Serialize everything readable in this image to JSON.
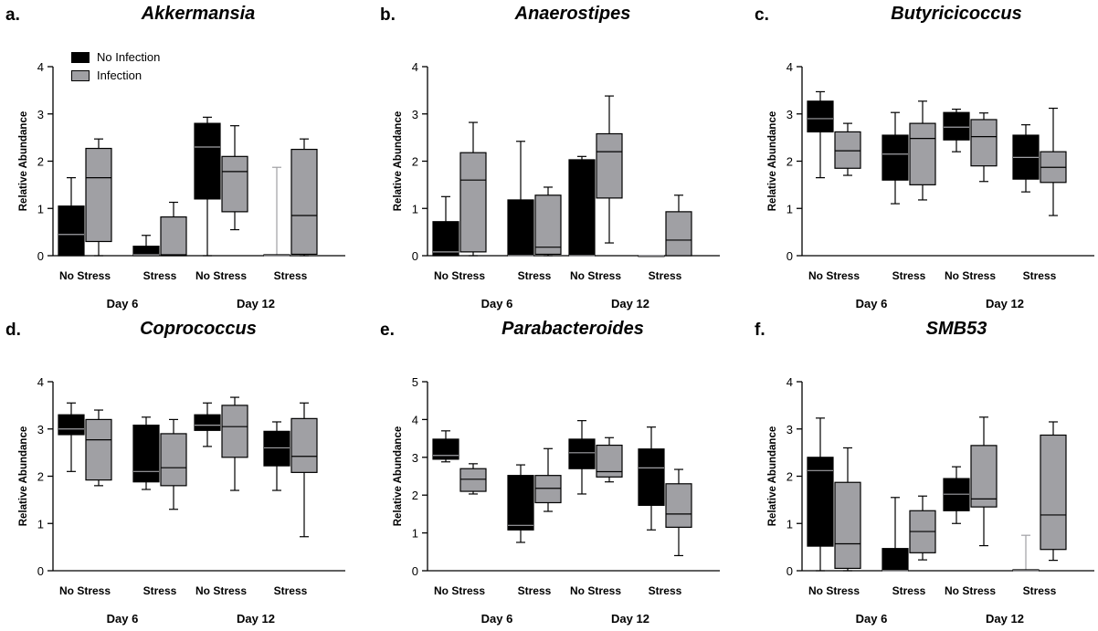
{
  "legend": {
    "items": [
      {
        "label": "No Infection",
        "color": "#000000"
      },
      {
        "label": "Infection",
        "color": "#a0a0a4"
      }
    ]
  },
  "chart_data": [
    {
      "type": "box",
      "panel_label": "a.",
      "title": "Akkermansia",
      "ylabel": "Relative Abundance",
      "ylim": [
        0,
        4
      ],
      "yticks": [
        0,
        1,
        2,
        3,
        4
      ],
      "x_labels": [
        "No Stress",
        "Stress",
        "No Stress",
        "Stress"
      ],
      "day_labels": [
        "Day 6",
        "Day 12"
      ],
      "series": [
        {
          "name": "No Infection",
          "color": "#000000",
          "boxes": [
            {
              "min": 0.0,
              "q1": 0.0,
              "median": 0.45,
              "q3": 1.05,
              "max": 1.65
            },
            {
              "min": 0.0,
              "q1": 0.0,
              "median": 0.02,
              "q3": 0.2,
              "max": 0.43
            },
            {
              "min": 0.0,
              "q1": 1.2,
              "median": 2.3,
              "q3": 2.8,
              "max": 2.93
            },
            {
              "min": 0.0,
              "q1": 0.0,
              "median": 0.0,
              "q3": 0.02,
              "max": 1.87
            }
          ]
        },
        {
          "name": "Infection",
          "color": "#a0a0a4",
          "boxes": [
            {
              "min": 0.0,
              "q1": 0.3,
              "median": 1.65,
              "q3": 2.27,
              "max": 2.47
            },
            {
              "min": 0.0,
              "q1": 0.0,
              "median": 0.02,
              "q3": 0.82,
              "max": 1.13
            },
            {
              "min": 0.55,
              "q1": 0.93,
              "median": 1.78,
              "q3": 2.1,
              "max": 2.75
            },
            {
              "min": 0.0,
              "q1": 0.03,
              "median": 0.85,
              "q3": 2.25,
              "max": 2.47
            }
          ]
        }
      ]
    },
    {
      "type": "box",
      "panel_label": "b.",
      "title": "Anaerostipes",
      "ylabel": "Relative Abundance",
      "ylim": [
        0,
        4
      ],
      "yticks": [
        0,
        1,
        2,
        3,
        4
      ],
      "x_labels": [
        "No Stress",
        "Stress",
        "No Stress",
        "Stress"
      ],
      "day_labels": [
        "Day 6",
        "Day 12"
      ],
      "series": [
        {
          "name": "No Infection",
          "color": "#000000",
          "boxes": [
            {
              "min": 0.0,
              "q1": 0.0,
              "median": 0.08,
              "q3": 0.72,
              "max": 1.25
            },
            {
              "min": 0.0,
              "q1": 0.0,
              "median": 0.0,
              "q3": 1.18,
              "max": 2.42
            },
            {
              "min": 0.0,
              "q1": 0.0,
              "median": 0.0,
              "q3": 2.03,
              "max": 2.1
            },
            {
              "min": 0.0,
              "q1": 0.0,
              "median": 0.0,
              "q3": 0.0,
              "max": 0.0
            }
          ]
        },
        {
          "name": "Infection",
          "color": "#a0a0a4",
          "boxes": [
            {
              "min": 0.0,
              "q1": 0.08,
              "median": 1.6,
              "q3": 2.18,
              "max": 2.82
            },
            {
              "min": 0.0,
              "q1": 0.03,
              "median": 0.18,
              "q3": 1.28,
              "max": 1.45
            },
            {
              "min": 0.27,
              "q1": 1.22,
              "median": 2.2,
              "q3": 2.58,
              "max": 3.38
            },
            {
              "min": 0.0,
              "q1": 0.0,
              "median": 0.33,
              "q3": 0.93,
              "max": 1.28
            }
          ]
        }
      ]
    },
    {
      "type": "box",
      "panel_label": "c.",
      "title": "Butyricicoccus",
      "ylabel": "Relative Abundance",
      "ylim": [
        0,
        4
      ],
      "yticks": [
        0,
        1,
        2,
        3,
        4
      ],
      "x_labels": [
        "No Stress",
        "Stress",
        "No Stress",
        "Stress"
      ],
      "day_labels": [
        "Day 6",
        "Day 12"
      ],
      "series": [
        {
          "name": "No Infection",
          "color": "#000000",
          "boxes": [
            {
              "min": 1.65,
              "q1": 2.62,
              "median": 2.9,
              "q3": 3.27,
              "max": 3.47
            },
            {
              "min": 1.1,
              "q1": 1.6,
              "median": 2.15,
              "q3": 2.55,
              "max": 3.03
            },
            {
              "min": 2.2,
              "q1": 2.45,
              "median": 2.72,
              "q3": 3.03,
              "max": 3.1
            },
            {
              "min": 1.35,
              "q1": 1.62,
              "median": 2.08,
              "q3": 2.55,
              "max": 2.77
            }
          ]
        },
        {
          "name": "Infection",
          "color": "#a0a0a4",
          "boxes": [
            {
              "min": 1.7,
              "q1": 1.85,
              "median": 2.22,
              "q3": 2.62,
              "max": 2.8
            },
            {
              "min": 1.18,
              "q1": 1.5,
              "median": 2.48,
              "q3": 2.8,
              "max": 3.27
            },
            {
              "min": 1.57,
              "q1": 1.9,
              "median": 2.52,
              "q3": 2.88,
              "max": 3.02
            },
            {
              "min": 0.85,
              "q1": 1.55,
              "median": 1.87,
              "q3": 2.2,
              "max": 3.12
            }
          ]
        }
      ]
    },
    {
      "type": "box",
      "panel_label": "d.",
      "title": "Coprococcus",
      "ylabel": "Relative Abundance",
      "ylim": [
        0,
        4
      ],
      "yticks": [
        0,
        1,
        2,
        3,
        4
      ],
      "x_labels": [
        "No Stress",
        "Stress",
        "No Stress",
        "Stress"
      ],
      "day_labels": [
        "Day 6",
        "Day 12"
      ],
      "series": [
        {
          "name": "No Infection",
          "color": "#000000",
          "boxes": [
            {
              "min": 2.1,
              "q1": 2.88,
              "median": 3.0,
              "q3": 3.3,
              "max": 3.55
            },
            {
              "min": 1.72,
              "q1": 1.88,
              "median": 2.1,
              "q3": 3.08,
              "max": 3.25
            },
            {
              "min": 2.63,
              "q1": 2.97,
              "median": 3.08,
              "q3": 3.3,
              "max": 3.55
            },
            {
              "min": 1.7,
              "q1": 2.22,
              "median": 2.6,
              "q3": 2.95,
              "max": 3.15
            }
          ]
        },
        {
          "name": "Infection",
          "color": "#a0a0a4",
          "boxes": [
            {
              "min": 1.8,
              "q1": 1.92,
              "median": 2.77,
              "q3": 3.2,
              "max": 3.4
            },
            {
              "min": 1.3,
              "q1": 1.8,
              "median": 2.18,
              "q3": 2.9,
              "max": 3.2
            },
            {
              "min": 1.7,
              "q1": 2.4,
              "median": 3.05,
              "q3": 3.5,
              "max": 3.67
            },
            {
              "min": 0.72,
              "q1": 2.08,
              "median": 2.42,
              "q3": 3.22,
              "max": 3.55
            }
          ]
        }
      ]
    },
    {
      "type": "box",
      "panel_label": "e.",
      "title": "Parabacteroides",
      "ylabel": "Relative Abundance",
      "ylim": [
        0,
        5
      ],
      "yticks": [
        0,
        1,
        2,
        3,
        4,
        5
      ],
      "x_labels": [
        "No Stress",
        "Stress",
        "No Stress",
        "Stress"
      ],
      "day_labels": [
        "Day 6",
        "Day 12"
      ],
      "series": [
        {
          "name": "No Infection",
          "color": "#000000",
          "boxes": [
            {
              "min": 2.88,
              "q1": 2.95,
              "median": 3.05,
              "q3": 3.48,
              "max": 3.7
            },
            {
              "min": 0.75,
              "q1": 1.08,
              "median": 1.2,
              "q3": 2.52,
              "max": 2.8
            },
            {
              "min": 2.03,
              "q1": 2.7,
              "median": 3.12,
              "q3": 3.48,
              "max": 3.97
            },
            {
              "min": 1.08,
              "q1": 1.73,
              "median": 2.72,
              "q3": 3.22,
              "max": 3.8
            }
          ]
        },
        {
          "name": "Infection",
          "color": "#a0a0a4",
          "boxes": [
            {
              "min": 2.03,
              "q1": 2.1,
              "median": 2.42,
              "q3": 2.7,
              "max": 2.83
            },
            {
              "min": 1.57,
              "q1": 1.8,
              "median": 2.18,
              "q3": 2.52,
              "max": 3.23
            },
            {
              "min": 2.35,
              "q1": 2.48,
              "median": 2.62,
              "q3": 3.32,
              "max": 3.52
            },
            {
              "min": 0.4,
              "q1": 1.15,
              "median": 1.5,
              "q3": 2.3,
              "max": 2.68
            }
          ]
        }
      ]
    },
    {
      "type": "box",
      "panel_label": "f.",
      "title": "SMB53",
      "ylabel": "Relative Abundance",
      "ylim": [
        0,
        4
      ],
      "yticks": [
        0,
        1,
        2,
        3,
        4
      ],
      "x_labels": [
        "No Stress",
        "Stress",
        "No Stress",
        "Stress"
      ],
      "day_labels": [
        "Day 6",
        "Day 12"
      ],
      "series": [
        {
          "name": "No Infection",
          "color": "#000000",
          "boxes": [
            {
              "min": 0.0,
              "q1": 0.52,
              "median": 2.12,
              "q3": 2.4,
              "max": 3.23
            },
            {
              "min": 0.0,
              "q1": 0.0,
              "median": 0.0,
              "q3": 0.47,
              "max": 1.55
            },
            {
              "min": 1.0,
              "q1": 1.27,
              "median": 1.62,
              "q3": 1.95,
              "max": 2.2
            },
            {
              "min": 0.0,
              "q1": 0.0,
              "median": 0.0,
              "q3": 0.02,
              "max": 0.75
            }
          ]
        },
        {
          "name": "Infection",
          "color": "#a0a0a4",
          "boxes": [
            {
              "min": 0.0,
              "q1": 0.05,
              "median": 0.57,
              "q3": 1.87,
              "max": 2.6
            },
            {
              "min": 0.23,
              "q1": 0.38,
              "median": 0.83,
              "q3": 1.27,
              "max": 1.58
            },
            {
              "min": 0.53,
              "q1": 1.35,
              "median": 1.52,
              "q3": 2.65,
              "max": 3.25
            },
            {
              "min": 0.22,
              "q1": 0.45,
              "median": 1.18,
              "q3": 2.87,
              "max": 3.15
            }
          ]
        }
      ]
    }
  ]
}
